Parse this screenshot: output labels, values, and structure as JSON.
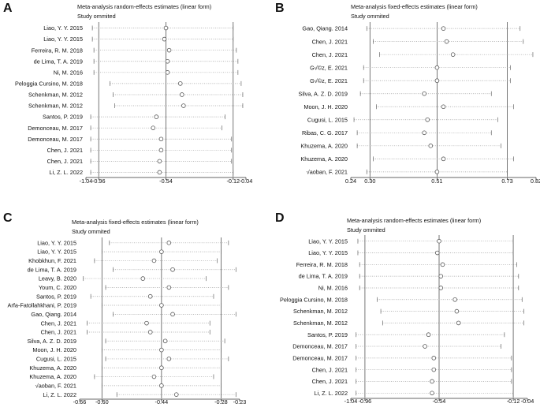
{
  "panels": [
    {
      "letter": "A",
      "title": "Meta-analysis random-effects estimates (linear form)",
      "subtitle": "Study ommited",
      "chart_data": {
        "type": "scatter",
        "axis_ticks": [
          -1.04,
          -0.96,
          -0.54,
          -0.12,
          -0.04
        ],
        "tick_labels": [
          "-1.04",
          "-0.96",
          "-0.54",
          "-0.12",
          "-0.04"
        ],
        "xlim": [
          -1.04,
          -0.04
        ],
        "vlines": [
          -0.96,
          -0.54,
          -0.12
        ],
        "studies": [
          "Liao, Y. Y. 2015",
          "Liao, Y. Y. 2015",
          "Ferreira, R. M. 2018",
          "de Lima, T. A. 2019",
          "Ni, M. 2016",
          "Peloggia Cursino, M. 2018",
          "Schenkman, M. 2012",
          "Schenkman, M. 2012",
          "Santos, P. 2019",
          "Demonceau, M. 2017",
          "Demonceau, M. 2017",
          "Chen, J. 2021",
          "Chen, J. 2021",
          "Li, Z. L. 2022"
        ],
        "estimates": [
          -0.54,
          -0.55,
          -0.52,
          -0.53,
          -0.53,
          -0.45,
          -0.44,
          -0.43,
          -0.6,
          -0.62,
          -0.57,
          -0.57,
          -0.58,
          -0.58
        ],
        "lower": [
          -1.0,
          -1.0,
          -0.99,
          -0.99,
          -0.99,
          -0.89,
          -0.87,
          -0.86,
          -1.01,
          -1.01,
          -1.01,
          -1.01,
          -1.01,
          -1.01
        ],
        "upper": [
          -0.12,
          -0.12,
          -0.1,
          -0.09,
          -0.09,
          -0.07,
          -0.06,
          -0.06,
          -0.17,
          -0.19,
          -0.13,
          -0.13,
          -0.13,
          -0.12
        ]
      }
    },
    {
      "letter": "B",
      "title": "Meta-analysis fixed-effects estimates (linear form)",
      "subtitle": "Study ommited",
      "chart_data": {
        "type": "scatter",
        "axis_ticks": [
          0.24,
          0.3,
          0.51,
          0.73,
          0.82
        ],
        "tick_labels": [
          "0.24",
          "0.30",
          "0.51",
          "0.73",
          "0.82"
        ],
        "xlim": [
          0.24,
          0.82
        ],
        "vlines": [
          0.3,
          0.51,
          0.73
        ],
        "studies": [
          "Gao, Qiang. 2014",
          "Chen, J. 2021",
          "Chen, J. 2021",
          "G√©z, E. 2021",
          "G√©z, E. 2021",
          "Silva, A. Z. D. 2019",
          "Moon, J. H. 2020",
          "Cugusi, L. 2015",
          "Ribas, C. G. 2017",
          "Khuzema, A. 2020",
          "Khuzema, A. 2020",
          "√aoban, F. 2021"
        ],
        "estimates": [
          0.53,
          0.54,
          0.56,
          0.51,
          0.51,
          0.47,
          0.53,
          0.48,
          0.47,
          0.49,
          0.53,
          0.51
        ],
        "lower": [
          0.29,
          0.31,
          0.33,
          0.28,
          0.28,
          0.27,
          0.32,
          0.25,
          0.26,
          0.26,
          0.31,
          0.29
        ],
        "upper": [
          0.77,
          0.78,
          0.81,
          0.74,
          0.74,
          0.68,
          0.75,
          0.7,
          0.68,
          0.71,
          0.75,
          0.73
        ]
      }
    },
    {
      "letter": "C",
      "title": "Meta-analysis fixed-effects estimates (linear form)",
      "subtitle": "Study ommited",
      "chart_data": {
        "type": "scatter",
        "axis_ticks": [
          -0.66,
          -0.6,
          -0.44,
          -0.28,
          -0.23
        ],
        "tick_labels": [
          "-0.66",
          "-0.60",
          "-0.44",
          "-0.28",
          "-0.23"
        ],
        "xlim": [
          -0.66,
          -0.23
        ],
        "vlines": [
          -0.6,
          -0.44,
          -0.28
        ],
        "studies": [
          "Liao, Y. Y. 2015",
          "Liao, Y. Y. 2015",
          "Khobkhun, F. 2021",
          "de Lima, T. A. 2019",
          "Leavy, B. 2020",
          "Youm, C. 2020",
          "Santos, P. 2019",
          "Arfa-Fatollahkhani, P. 2019",
          "Gao, Qiang. 2014",
          "Chen, J. 2021",
          "Chen, J. 2021",
          "Silva, A. Z. D. 2019",
          "Moon, J. H. 2020",
          "Cugusi, L. 2015",
          "Khuzema, A. 2020",
          "Khuzema, A. 2020",
          "√aoban, F. 2021",
          "Li, Z. L. 2022"
        ],
        "estimates": [
          -0.42,
          -0.44,
          -0.46,
          -0.41,
          -0.49,
          -0.42,
          -0.47,
          -0.44,
          -0.41,
          -0.48,
          -0.47,
          -0.43,
          -0.44,
          -0.42,
          -0.44,
          -0.46,
          -0.44,
          -0.4
        ],
        "lower": [
          -0.58,
          -0.6,
          -0.62,
          -0.57,
          -0.65,
          -0.59,
          -0.63,
          -0.6,
          -0.57,
          -0.64,
          -0.64,
          -0.59,
          -0.6,
          -0.59,
          -0.6,
          -0.62,
          -0.6,
          -0.56
        ],
        "upper": [
          -0.26,
          -0.28,
          -0.29,
          -0.24,
          -0.32,
          -0.26,
          -0.3,
          -0.28,
          -0.24,
          -0.31,
          -0.31,
          -0.27,
          -0.28,
          -0.26,
          -0.28,
          -0.3,
          -0.28,
          -0.24
        ]
      }
    },
    {
      "letter": "D",
      "title": "Meta-analysis random-effects estimates (linear form)",
      "subtitle": "Study ommited",
      "chart_data": {
        "type": "scatter",
        "axis_ticks": [
          -1.04,
          -0.96,
          -0.54,
          -0.12,
          -0.04
        ],
        "tick_labels": [
          "-1.04",
          "-0.96",
          "-0.54",
          "-0.12",
          "-0.04"
        ],
        "xlim": [
          -1.04,
          -0.04
        ],
        "vlines": [
          -0.96,
          -0.54,
          -0.12
        ],
        "studies": [
          "Liao, Y. Y. 2015",
          "Liao, Y. Y. 2015",
          "Ferreira, R. M. 2018",
          "de Lima, T. A. 2019",
          "Ni, M. 2016",
          "Peloggia Cursino, M. 2018",
          "Schenkman, M. 2012",
          "Schenkman, M. 2012",
          "Santos, P. 2019",
          "Demonceau, M. 2017",
          "Demonceau, M. 2017",
          "Chen, J. 2021",
          "Chen, J. 2021",
          "Li, Z. L. 2022"
        ],
        "estimates": [
          -0.54,
          -0.55,
          -0.52,
          -0.53,
          -0.53,
          -0.45,
          -0.44,
          -0.43,
          -0.6,
          -0.62,
          -0.57,
          -0.57,
          -0.58,
          -0.58
        ],
        "lower": [
          -1.0,
          -1.0,
          -0.99,
          -0.99,
          -0.99,
          -0.89,
          -0.87,
          -0.86,
          -1.01,
          -1.01,
          -1.01,
          -1.01,
          -1.01,
          -1.01
        ],
        "upper": [
          -0.12,
          -0.12,
          -0.1,
          -0.09,
          -0.09,
          -0.07,
          -0.06,
          -0.06,
          -0.17,
          -0.19,
          -0.13,
          -0.13,
          -0.13,
          -0.12
        ]
      }
    }
  ]
}
